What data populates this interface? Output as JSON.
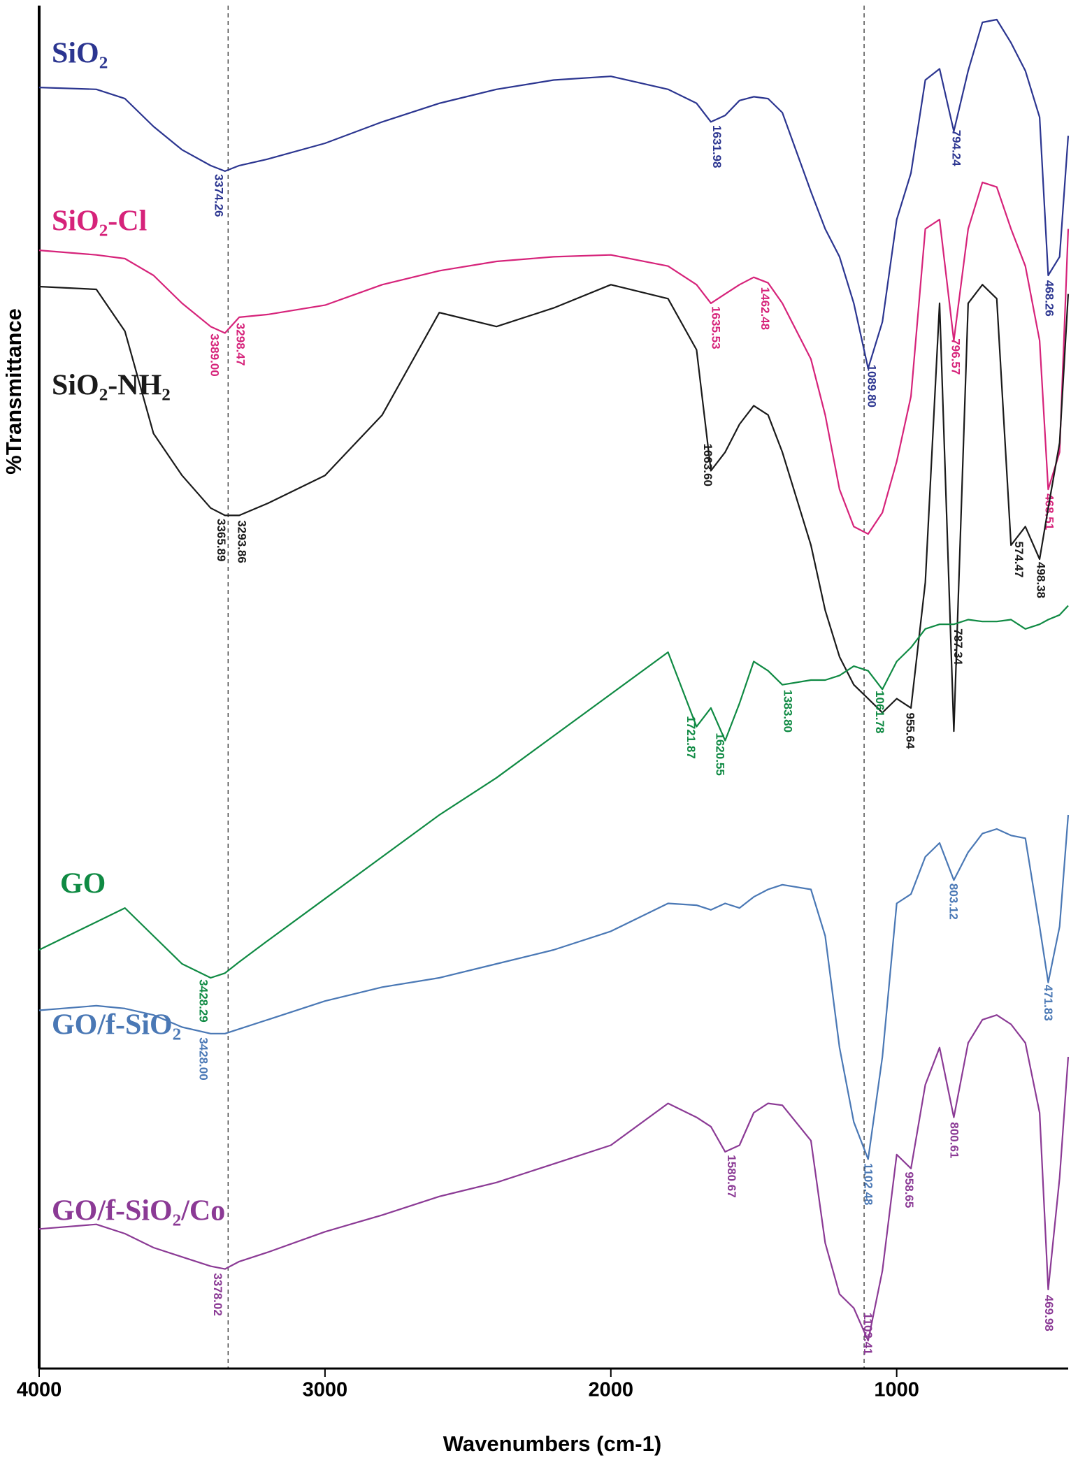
{
  "chart_data": {
    "type": "line",
    "xlabel": "Wavenumbers (cm-1)",
    "ylabel": "%Transmittance",
    "xlim": [
      4000,
      400
    ],
    "xticks": [
      4000,
      3000,
      2000,
      1000
    ],
    "ylim": [
      0,
      146.5
    ],
    "grid": false,
    "reference_lines": [
      3339,
      1114
    ],
    "x": [
      4000,
      3800,
      3700,
      3600,
      3500,
      3400,
      3350,
      3300,
      3200,
      3000,
      2800,
      2600,
      2400,
      2200,
      2000,
      1800,
      1700,
      1650,
      1600,
      1550,
      1500,
      1450,
      1400,
      1300,
      1250,
      1200,
      1150,
      1100,
      1050,
      1000,
      950,
      900,
      850,
      800,
      750,
      700,
      650,
      600,
      550,
      500,
      470,
      430,
      400
    ],
    "series": [
      {
        "name": "SiO₂",
        "color": "#2b3590",
        "values": [
          137.7,
          137.5,
          136.5,
          133.5,
          131,
          129.3,
          128.7,
          129.3,
          130,
          131.7,
          134,
          136,
          137.5,
          138.5,
          138.9,
          137.5,
          136,
          134,
          134.7,
          136.3,
          136.7,
          136.5,
          135,
          126.5,
          122.5,
          119.5,
          114.5,
          107.5,
          112.5,
          123.5,
          128.5,
          138.5,
          139.7,
          133,
          139.5,
          144.7,
          145,
          142.5,
          139.5,
          134.5,
          117.5,
          119.5,
          132.5
        ],
        "peaks": [
          3374.26,
          1631.98,
          {
            "value": 1089.8,
            "label": "1089.80"
          },
          794.24,
          468.26
        ]
      },
      {
        "name": "SiO₂-Cl",
        "color": "#d6237a",
        "values": [
          120.2,
          119.7,
          119.3,
          117.5,
          114.5,
          112,
          111.3,
          113,
          113.3,
          114.3,
          116.5,
          118,
          119,
          119.5,
          119.7,
          118.5,
          116.5,
          114.5,
          115.5,
          116.5,
          117.3,
          116.7,
          114.5,
          108.5,
          102.5,
          94.5,
          90.5,
          89.7,
          92,
          97.5,
          104.5,
          122.5,
          123.5,
          110.5,
          122.5,
          127.5,
          127,
          122.5,
          118.5,
          110.5,
          94.5,
          98.5,
          122.5
        ],
        "peaks": [
          {
            "value": 3389,
            "label": "3389.00"
          },
          3298.47,
          1635.53,
          1462.48,
          796.57,
          468.51
        ]
      },
      {
        "name": "SiO₂-NH₂",
        "color": "#1a1a1a",
        "values": [
          116.3,
          116,
          111.5,
          100.5,
          96,
          92.5,
          91.7,
          91.7,
          93,
          96,
          102.5,
          113.5,
          112,
          114,
          116.5,
          115,
          109.5,
          96.5,
          98.5,
          101.5,
          103.5,
          102.5,
          98.5,
          88.5,
          81.5,
          76.5,
          73.5,
          72,
          70.5,
          72,
          71,
          84.5,
          114.5,
          68.5,
          114.5,
          116.5,
          115,
          88.5,
          90.5,
          87,
          92.5,
          99.5,
          115.5
        ],
        "peaks": [
          3365.89,
          3293.86,
          {
            "value": 1663.6,
            "label": "1663.60"
          },
          955.64,
          787.34,
          574.47,
          498.38
        ]
      },
      {
        "name": "GO",
        "color": "#0f8a43",
        "values": [
          45,
          48,
          49.5,
          46.5,
          43.5,
          42,
          42.5,
          43.7,
          46,
          50.5,
          55,
          59.5,
          63.5,
          68,
          72.5,
          77,
          69,
          71,
          67.5,
          71.5,
          76,
          75,
          73.5,
          74,
          74,
          74.5,
          75.5,
          75,
          73,
          76,
          77.5,
          79.5,
          80,
          80,
          80.5,
          80.3,
          80.3,
          80.5,
          79.5,
          80,
          80.5,
          81,
          82
        ],
        "peaks": [
          3428.29,
          1721.87,
          1620.55,
          {
            "value": 1383.8,
            "label": "1383.80"
          },
          1061.78
        ]
      },
      {
        "name": "GO/f-SiO₂",
        "color": "#4a78b5",
        "values": [
          38.5,
          39,
          38.7,
          38,
          36.7,
          36,
          36,
          36.5,
          37.5,
          39.5,
          41,
          42,
          43.5,
          45,
          47,
          50,
          49.8,
          49.3,
          50,
          49.5,
          50.7,
          51.5,
          52,
          51.5,
          46.5,
          34.5,
          26.5,
          22.5,
          33.5,
          50,
          51,
          55,
          56.5,
          52.5,
          55.5,
          57.5,
          58,
          57.3,
          57,
          47.5,
          41.5,
          47.5,
          59.5
        ],
        "peaks": [
          {
            "value": 3428,
            "label": "3428.00"
          },
          1102.48,
          803.12,
          471.83
        ]
      },
      {
        "name": "GO/f-SiO₂/Co",
        "color": "#8b3a95",
        "values": [
          15,
          15.5,
          14.5,
          13,
          12,
          11,
          10.7,
          11.5,
          12.5,
          14.7,
          16.5,
          18.5,
          20,
          22,
          24,
          28.5,
          27,
          26,
          23.3,
          24,
          27.5,
          28.5,
          28.3,
          24.5,
          13.5,
          8,
          6.5,
          3,
          10.5,
          23,
          21.5,
          30.5,
          34.5,
          27,
          35,
          37.5,
          38,
          37,
          35,
          27.5,
          8.5,
          20.5,
          33.5
        ],
        "peaks": [
          3378.02,
          1580.67,
          1103.41,
          958.65,
          800.61,
          469.98
        ]
      }
    ]
  }
}
